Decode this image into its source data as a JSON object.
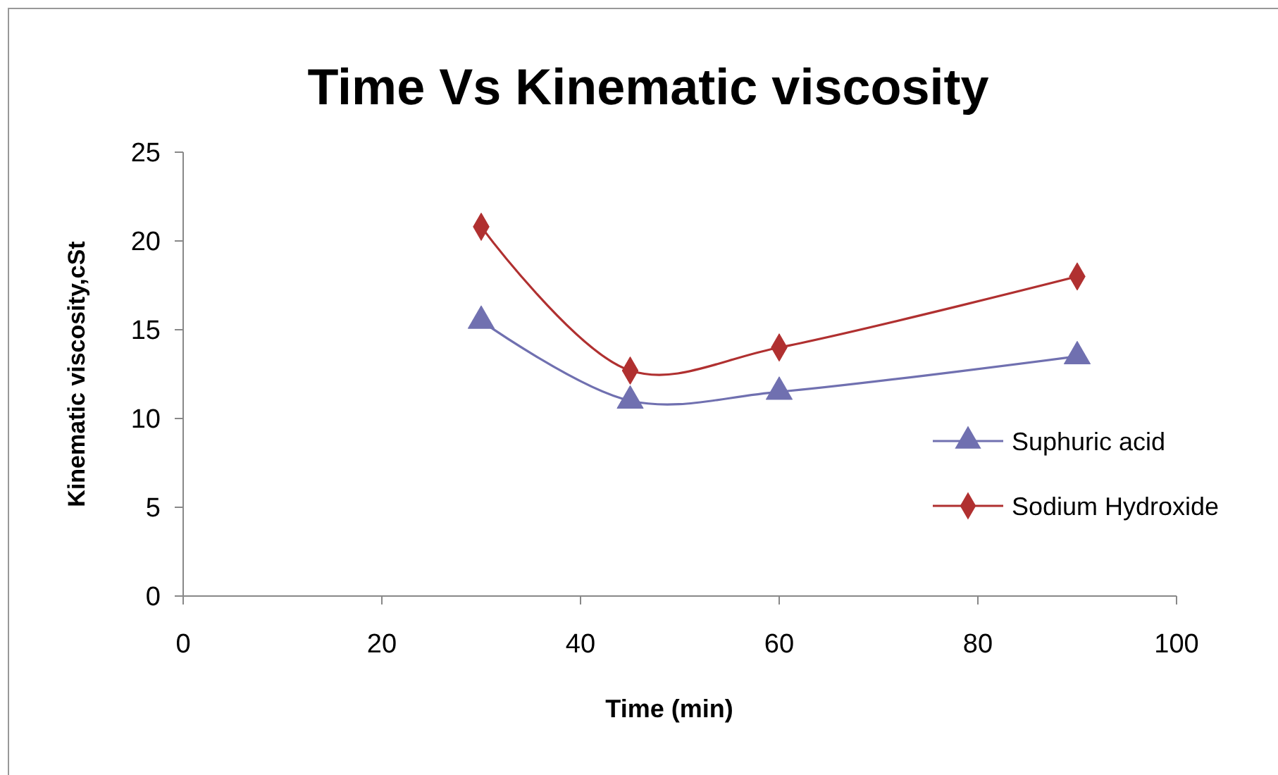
{
  "chart_data": {
    "type": "line",
    "title": "Time Vs Kinematic viscosity",
    "xlabel": "Time (min)",
    "ylabel": "Kinematic viscosity,cSt",
    "x": [
      30,
      45,
      60,
      90
    ],
    "xlim": [
      0,
      100
    ],
    "xticks": [
      0,
      20,
      40,
      60,
      80,
      100
    ],
    "ylim": [
      0,
      25
    ],
    "yticks": [
      0,
      5,
      10,
      15,
      20,
      25
    ],
    "grid": false,
    "legend": "right",
    "series": [
      {
        "name": "Suphuric acid",
        "color": "#7070b0",
        "marker": "triangle",
        "values": [
          15.5,
          11.0,
          11.5,
          13.5
        ]
      },
      {
        "name": "Sodium Hydroxide",
        "color": "#b03030",
        "marker": "diamond",
        "values": [
          20.8,
          12.7,
          14.0,
          18.0
        ]
      }
    ]
  }
}
